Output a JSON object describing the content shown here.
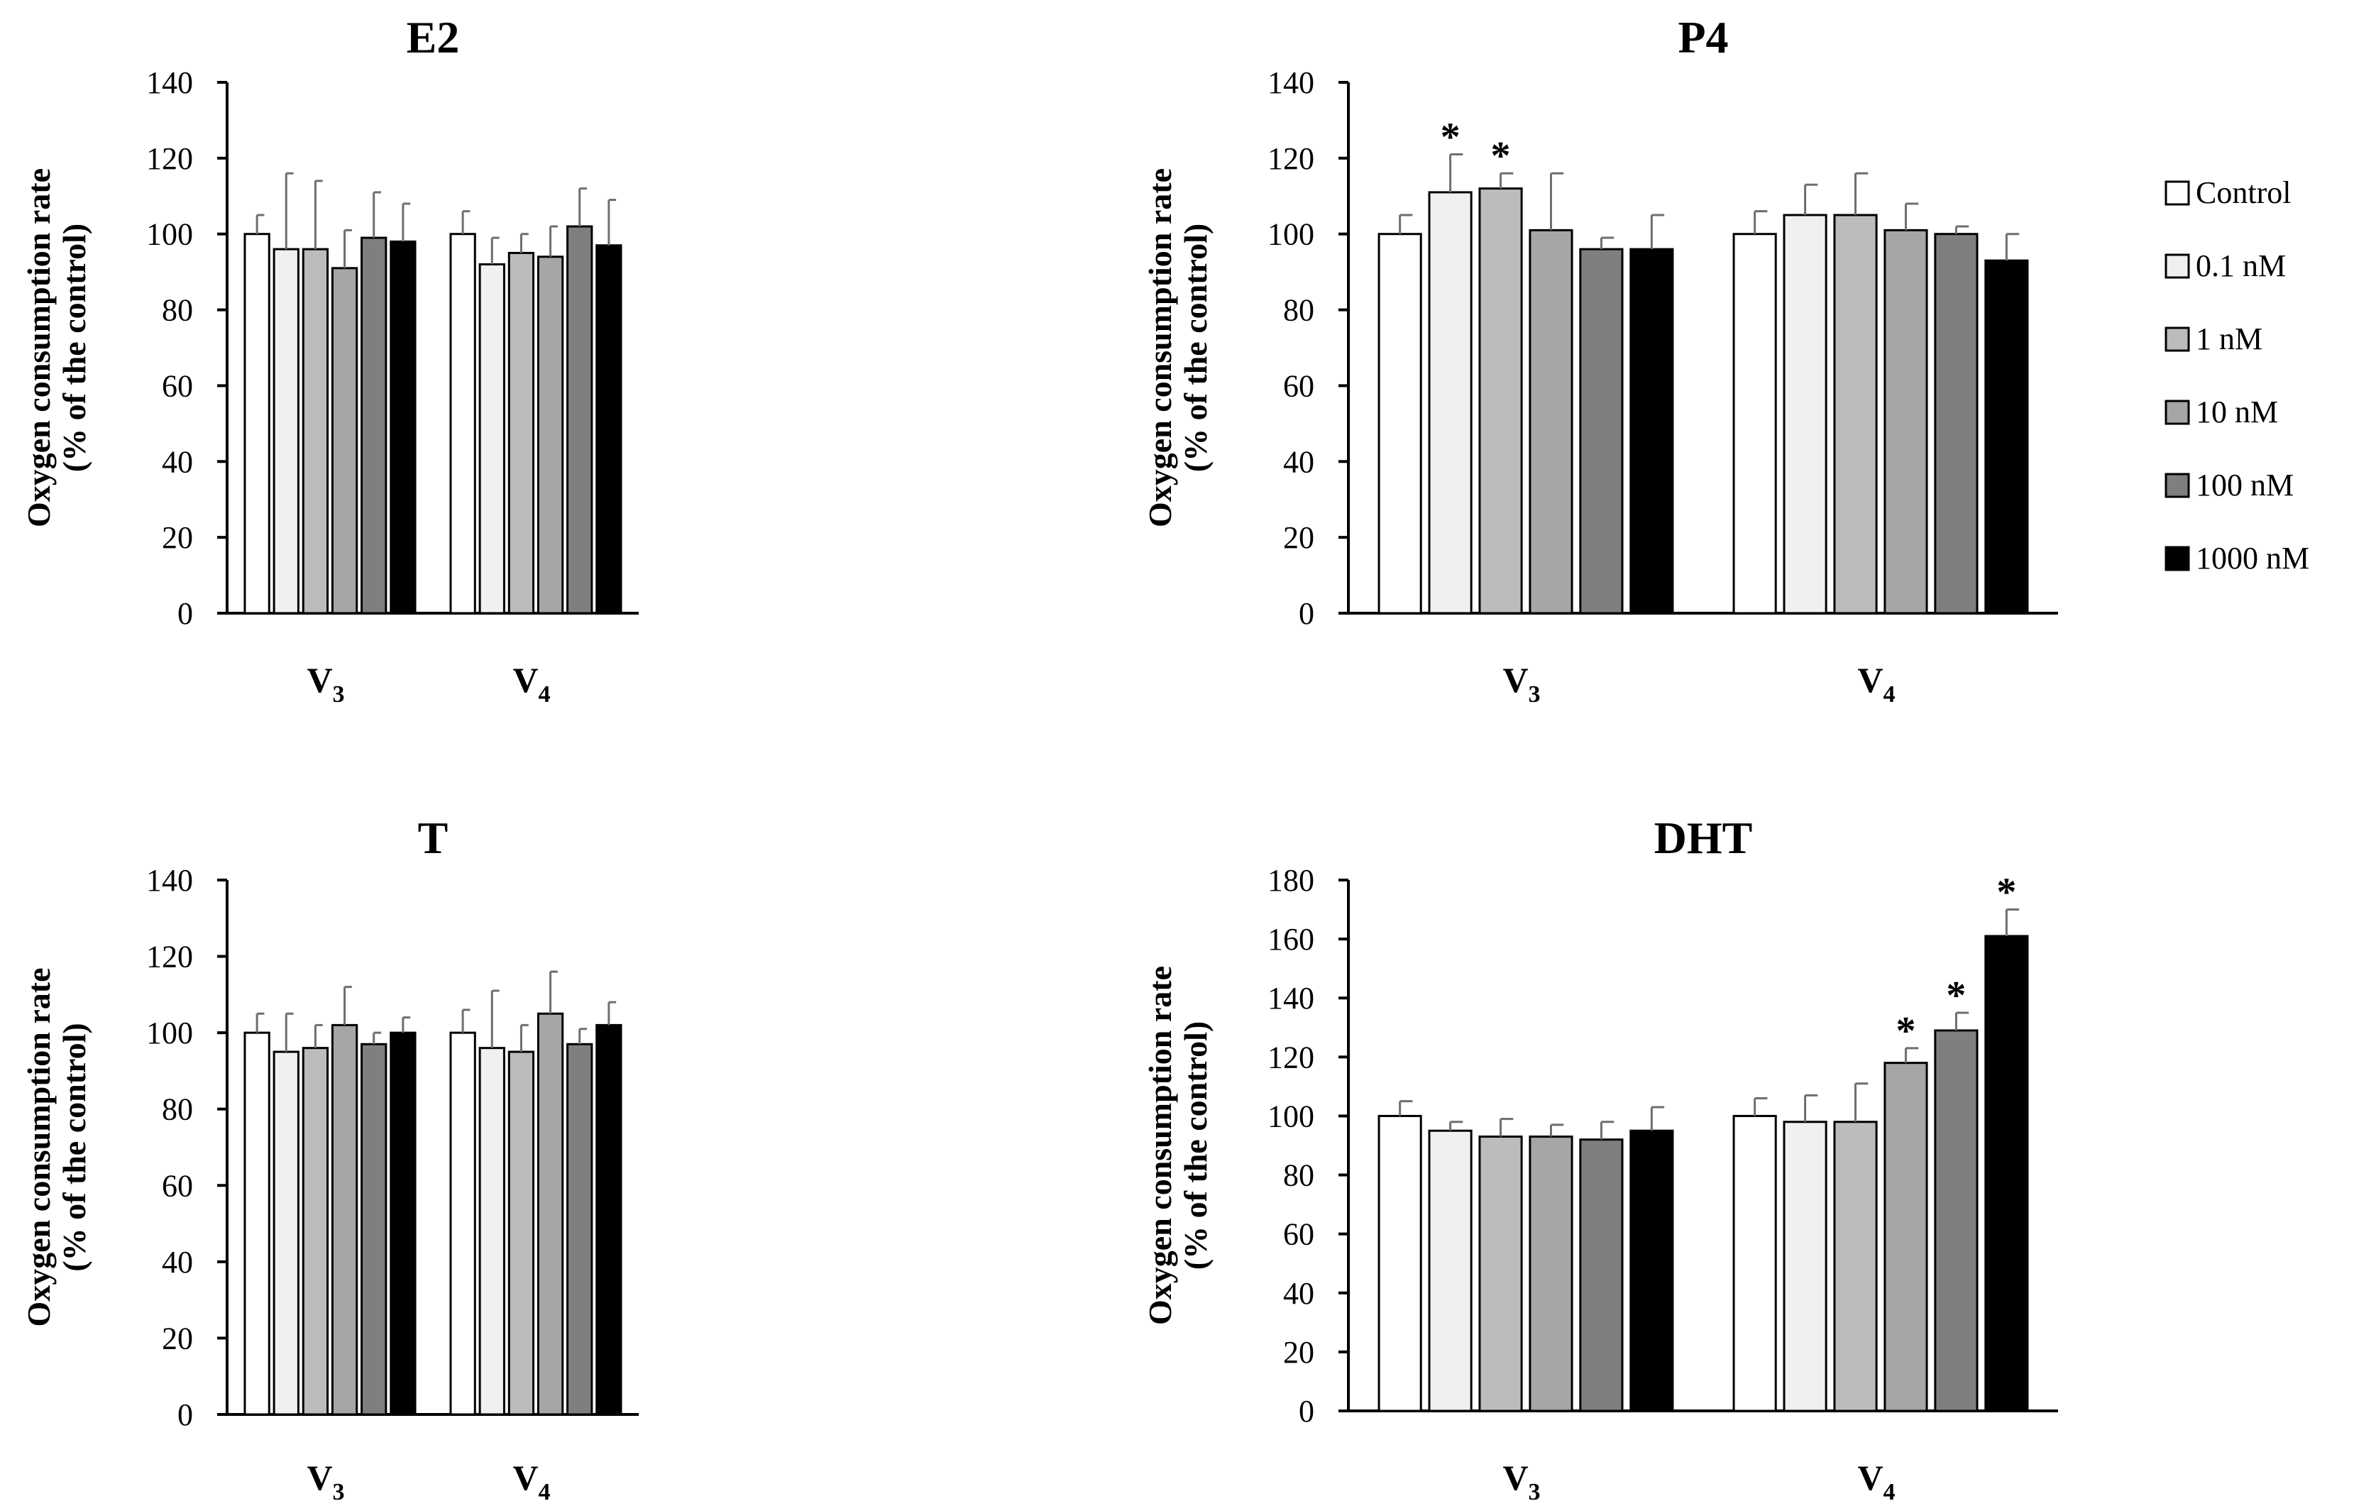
{
  "chart_data": [
    {
      "type": "bar",
      "title": "E2",
      "ylabel": "Oxygen consumption rate",
      "ylabel2": "(% of the control)",
      "ylim": [
        0,
        140
      ],
      "yticks": [
        "0",
        "20",
        "40",
        "60",
        "80",
        "100",
        "120",
        "140"
      ],
      "categories": [
        {
          "main": "V",
          "sub": "3"
        },
        {
          "main": "V",
          "sub": "4"
        }
      ],
      "series": [
        {
          "name": "Control",
          "values": [
            100,
            100
          ],
          "errors": [
            5,
            6
          ],
          "sig": [
            false,
            false
          ]
        },
        {
          "name": "0.1 nM",
          "values": [
            96,
            92
          ],
          "errors": [
            20,
            7
          ],
          "sig": [
            false,
            false
          ]
        },
        {
          "name": "1 nM",
          "values": [
            96,
            95
          ],
          "errors": [
            18,
            5
          ],
          "sig": [
            false,
            false
          ]
        },
        {
          "name": "10 nM",
          "values": [
            91,
            94
          ],
          "errors": [
            10,
            8
          ],
          "sig": [
            false,
            false
          ]
        },
        {
          "name": "100 nM",
          "values": [
            99,
            102
          ],
          "errors": [
            12,
            10
          ],
          "sig": [
            false,
            false
          ]
        },
        {
          "name": "1000 nM",
          "values": [
            98,
            97
          ],
          "errors": [
            10,
            12
          ],
          "sig": [
            false,
            false
          ]
        }
      ]
    },
    {
      "type": "bar",
      "title": "P4",
      "ylabel": "Oxygen consumption rate",
      "ylabel2": "(% of the control)",
      "ylim": [
        0,
        140
      ],
      "yticks": [
        "0",
        "20",
        "40",
        "60",
        "80",
        "100",
        "120",
        "140"
      ],
      "categories": [
        {
          "main": "V",
          "sub": "3"
        },
        {
          "main": "V",
          "sub": "4"
        }
      ],
      "series": [
        {
          "name": "Control",
          "values": [
            100,
            100
          ],
          "errors": [
            5,
            6
          ],
          "sig": [
            false,
            false
          ]
        },
        {
          "name": "0.1 nM",
          "values": [
            111,
            105
          ],
          "errors": [
            10,
            8
          ],
          "sig": [
            true,
            false
          ]
        },
        {
          "name": "1 nM",
          "values": [
            112,
            105
          ],
          "errors": [
            4,
            11
          ],
          "sig": [
            true,
            false
          ]
        },
        {
          "name": "10 nM",
          "values": [
            101,
            101
          ],
          "errors": [
            15,
            7
          ],
          "sig": [
            false,
            false
          ]
        },
        {
          "name": "100 nM",
          "values": [
            96,
            100
          ],
          "errors": [
            3,
            2
          ],
          "sig": [
            false,
            false
          ]
        },
        {
          "name": "1000 nM",
          "values": [
            96,
            93
          ],
          "errors": [
            9,
            7
          ],
          "sig": [
            false,
            false
          ]
        }
      ]
    },
    {
      "type": "bar",
      "title": "T",
      "ylabel": "Oxygen consumption rate",
      "ylabel2": "(% of the control)",
      "ylim": [
        0,
        140
      ],
      "yticks": [
        "0",
        "20",
        "40",
        "60",
        "80",
        "100",
        "120",
        "140"
      ],
      "categories": [
        {
          "main": "V",
          "sub": "3"
        },
        {
          "main": "V",
          "sub": "4"
        }
      ],
      "series": [
        {
          "name": "Control",
          "values": [
            100,
            100
          ],
          "errors": [
            5,
            6
          ],
          "sig": [
            false,
            false
          ]
        },
        {
          "name": "0.1 nM",
          "values": [
            95,
            96
          ],
          "errors": [
            10,
            15
          ],
          "sig": [
            false,
            false
          ]
        },
        {
          "name": "1 nM",
          "values": [
            96,
            95
          ],
          "errors": [
            6,
            7
          ],
          "sig": [
            false,
            false
          ]
        },
        {
          "name": "10 nM",
          "values": [
            102,
            105
          ],
          "errors": [
            10,
            11
          ],
          "sig": [
            false,
            false
          ]
        },
        {
          "name": "100 nM",
          "values": [
            97,
            97
          ],
          "errors": [
            3,
            4
          ],
          "sig": [
            false,
            false
          ]
        },
        {
          "name": "1000 nM",
          "values": [
            100,
            102
          ],
          "errors": [
            4,
            6
          ],
          "sig": [
            false,
            false
          ]
        }
      ]
    },
    {
      "type": "bar",
      "title": "DHT",
      "ylabel": "Oxygen consumption rate",
      "ylabel2": "(% of the control)",
      "ylim": [
        0,
        180
      ],
      "yticks": [
        "0",
        "20",
        "40",
        "60",
        "80",
        "100",
        "120",
        "140",
        "160",
        "180"
      ],
      "categories": [
        {
          "main": "V",
          "sub": "3"
        },
        {
          "main": "V",
          "sub": "4"
        }
      ],
      "series": [
        {
          "name": "Control",
          "values": [
            100,
            100
          ],
          "errors": [
            5,
            6
          ],
          "sig": [
            false,
            false
          ]
        },
        {
          "name": "0.1 nM",
          "values": [
            95,
            98
          ],
          "errors": [
            3,
            9
          ],
          "sig": [
            false,
            false
          ]
        },
        {
          "name": "1 nM",
          "values": [
            93,
            98
          ],
          "errors": [
            6,
            13
          ],
          "sig": [
            false,
            false
          ]
        },
        {
          "name": "10 nM",
          "values": [
            93,
            118
          ],
          "errors": [
            4,
            5
          ],
          "sig": [
            false,
            true
          ]
        },
        {
          "name": "100 nM",
          "values": [
            92,
            129
          ],
          "errors": [
            6,
            6
          ],
          "sig": [
            false,
            true
          ]
        },
        {
          "name": "1000 nM",
          "values": [
            95,
            161
          ],
          "errors": [
            8,
            9
          ],
          "sig": [
            false,
            true
          ]
        }
      ]
    }
  ],
  "legend": {
    "items": [
      {
        "label": "Control",
        "color": "#ffffff"
      },
      {
        "label": "0.1 nM",
        "color": "#f0f0f0"
      },
      {
        "label": "1 nM",
        "color": "#bcbcbc"
      },
      {
        "label": "10 nM",
        "color": "#a6a6a6"
      },
      {
        "label": "100 nM",
        "color": "#7f7f7f"
      },
      {
        "label": "1000 nM",
        "color": "#000000"
      }
    ]
  },
  "significance_marker": "*",
  "colors": {
    "bar_stroke": "#000000",
    "error_bar": "#6e6e6e",
    "axis": "#000000"
  }
}
